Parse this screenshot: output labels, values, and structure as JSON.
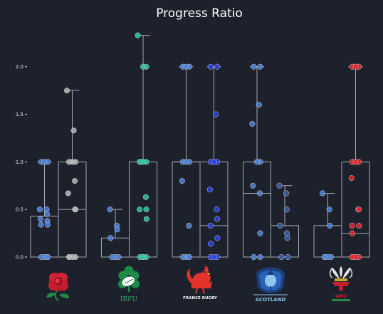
{
  "chart_data": {
    "type": "box",
    "title": "Progress Ratio",
    "xlabel": "",
    "ylabel": "",
    "ylim": [
      -0.05,
      2.45
    ],
    "yticks": [
      0.0,
      0.5,
      1.0,
      1.5,
      2.0
    ],
    "ytick_labels": [
      "0.0",
      "0.5",
      "1.0",
      "1.5",
      "2.0"
    ],
    "grid": false,
    "x_axis_logos": [
      {
        "team": "England",
        "icon": "england-rose-logo"
      },
      {
        "team": "Ireland",
        "icon": "irfu-shamrock-logo",
        "text": "IRFU"
      },
      {
        "team": "France",
        "icon": "france-rugby-rooster-logo",
        "text": "FRANCE RUGBY"
      },
      {
        "team": "Scotland",
        "icon": "scotland-thistle-logo",
        "text": "SCOTLAND"
      },
      {
        "team": "Wales",
        "icon": "wales-feathers-logo",
        "text": "WRU"
      }
    ],
    "series": [
      {
        "team": "England",
        "color": "#4c82dc",
        "box": {
          "q1": 0.0,
          "median": 0.0,
          "q3": 0.43,
          "whisker_low": 0.0,
          "whisker_high": 1.0
        },
        "points": [
          1.0,
          1.0,
          1.0,
          0.5,
          0.5,
          0.45,
          0.4,
          0.38,
          0.34,
          0.34,
          0.0,
          0.0,
          0.0,
          0.0
        ]
      },
      {
        "team": "England",
        "color": "#b9b9b9",
        "box": {
          "q1": 0.0,
          "median": 0.5,
          "q3": 1.0,
          "whisker_low": 0.0,
          "whisker_high": 1.75
        },
        "points": [
          1.75,
          1.33,
          1.0,
          1.0,
          1.0,
          0.8,
          0.67,
          0.5,
          0.5,
          0.0,
          0.0,
          0.0,
          0.0
        ]
      },
      {
        "team": "Ireland",
        "color": "#4c82dc",
        "box": {
          "q1": 0.0,
          "median": 0.0,
          "q3": 0.2,
          "whisker_low": 0.0,
          "whisker_high": 0.5
        },
        "points": [
          0.5,
          0.33,
          0.29,
          0.2,
          0.0,
          0.0,
          0.0
        ]
      },
      {
        "team": "Ireland",
        "color": "#2ec4a3",
        "box": {
          "q1": 0.0,
          "median": 0.0,
          "q3": 1.0,
          "whisker_low": 0.0,
          "whisker_high": 2.33
        },
        "points": [
          2.33,
          2.0,
          2.0,
          1.0,
          1.0,
          1.0,
          1.0,
          0.63,
          0.5,
          0.5,
          0.4,
          0.0,
          0.0,
          0.0,
          0.0
        ]
      },
      {
        "team": "France",
        "color": "#4c82dc",
        "box": {
          "q1": 0.0,
          "median": 1.0,
          "q3": 1.0,
          "whisker_low": 0.0,
          "whisker_high": 2.0
        },
        "points": [
          2.0,
          2.0,
          2.0,
          1.0,
          1.0,
          1.0,
          0.8,
          0.33,
          0.0,
          0.0,
          0.0
        ]
      },
      {
        "team": "France",
        "color": "#2b3ee6",
        "box": {
          "q1": 0.0,
          "median": 0.33,
          "q3": 1.0,
          "whisker_low": 0.0,
          "whisker_high": 2.0
        },
        "points": [
          2.0,
          2.0,
          1.5,
          1.0,
          1.0,
          1.0,
          0.71,
          0.5,
          0.4,
          0.33,
          0.2,
          0.14,
          0.0,
          0.0,
          0.0
        ]
      },
      {
        "team": "Scotland",
        "color": "#4c82dc",
        "box": {
          "q1": 0.0,
          "median": 0.67,
          "q3": 1.0,
          "whisker_low": 0.0,
          "whisker_high": 2.0
        },
        "points": [
          2.0,
          2.0,
          1.6,
          1.4,
          1.0,
          1.0,
          0.75,
          0.67,
          0.25,
          0.0,
          0.0
        ]
      },
      {
        "team": "Scotland",
        "color": "#3d5aa8",
        "box": {
          "q1": 0.0,
          "median": 0.0,
          "q3": 0.33,
          "whisker_low": 0.0,
          "whisker_high": 0.75
        },
        "points": [
          0.75,
          0.67,
          0.5,
          0.33,
          0.25,
          0.2,
          0.0,
          0.0
        ]
      },
      {
        "team": "Wales",
        "color": "#4c82dc",
        "box": {
          "q1": 0.0,
          "median": 0.0,
          "q3": 0.33,
          "whisker_low": 0.0,
          "whisker_high": 0.67
        },
        "points": [
          0.67,
          0.5,
          0.33,
          0.0,
          0.0,
          0.0,
          0.0
        ]
      },
      {
        "team": "Wales",
        "color": "#e6262b",
        "box": {
          "q1": 0.0,
          "median": 0.25,
          "q3": 1.0,
          "whisker_low": 0.0,
          "whisker_high": 2.0
        },
        "points": [
          2.0,
          2.0,
          2.0,
          1.0,
          1.0,
          1.0,
          0.83,
          0.5,
          0.5,
          0.33,
          0.33,
          0.25,
          0.0,
          0.0,
          0.0,
          0.0
        ]
      }
    ]
  }
}
